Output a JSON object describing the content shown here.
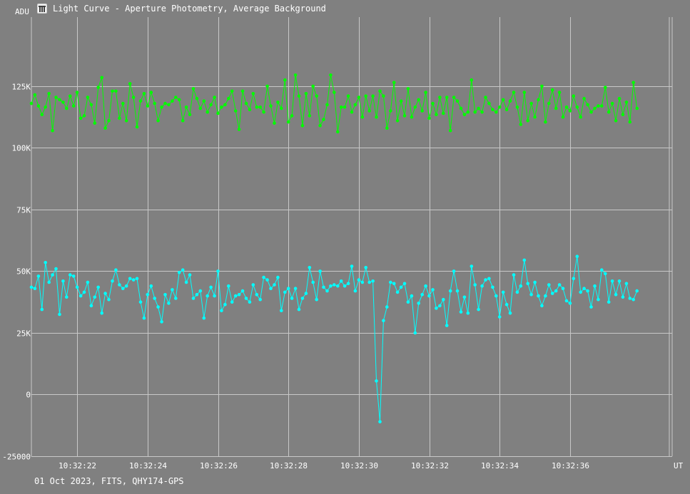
{
  "window": {
    "title": "Light Curve - Aperture Photometry, Average Background",
    "icon": "app-logo-icon"
  },
  "footer": {
    "info": "01 Oct 2023, FITS, QHY174-GPS"
  },
  "colors": {
    "background": "#808080",
    "grid": "#c8c8c8",
    "text": "#ffffff",
    "series_background": "#00ff00",
    "series_target": "#00ffff"
  },
  "chart_data": {
    "type": "line",
    "title": "Light Curve - Aperture Photometry, Average Background",
    "ylabel": "ADU",
    "xlabel": "UT",
    "ylim": [
      -25000,
      153000
    ],
    "xlim_seconds": [
      20.7,
      38.9
    ],
    "grid": true,
    "y_ticks": [
      {
        "value": 125000,
        "label": "125K"
      },
      {
        "value": 100000,
        "label": "100K"
      },
      {
        "value": 75000,
        "label": "75K"
      },
      {
        "value": 50000,
        "label": "50K"
      },
      {
        "value": 25000,
        "label": "25K"
      },
      {
        "value": 0,
        "label": "0"
      },
      {
        "value": -25000,
        "label": "-25000"
      }
    ],
    "x_ticks": [
      {
        "value": 22,
        "label": "10:32:22"
      },
      {
        "value": 24,
        "label": "10:32:24"
      },
      {
        "value": 26,
        "label": "10:32:26"
      },
      {
        "value": 28,
        "label": "10:32:28"
      },
      {
        "value": 30,
        "label": "10:32:30"
      },
      {
        "value": 32,
        "label": "10:32:32"
      },
      {
        "value": 34,
        "label": "10:32:34"
      },
      {
        "value": 36,
        "label": "10:32:36"
      }
    ],
    "x_step_seconds": 0.1,
    "series": [
      {
        "color": "#00ff00",
        "start_seconds": 20.7,
        "values": [
          118000,
          121500,
          117000,
          113500,
          116500,
          122000,
          107000,
          120500,
          119500,
          118500,
          116000,
          121000,
          117000,
          122500,
          112000,
          113000,
          120500,
          117500,
          110000,
          124500,
          128500,
          108000,
          111000,
          123000,
          123000,
          112000,
          118000,
          111000,
          126000,
          120500,
          108500,
          119000,
          122000,
          117000,
          122500,
          118000,
          111000,
          116500,
          118000,
          117500,
          119000,
          120500,
          119500,
          111000,
          116500,
          113500,
          124000,
          120000,
          116000,
          119000,
          114500,
          117500,
          120500,
          114000,
          116500,
          117500,
          120000,
          123000,
          115000,
          107500,
          123000,
          118000,
          115500,
          122000,
          116500,
          116500,
          114500,
          125000,
          117000,
          110000,
          118500,
          116000,
          127500,
          110500,
          113000,
          129500,
          121000,
          109000,
          122000,
          113000,
          125000,
          121000,
          109000,
          111500,
          117500,
          129500,
          122500,
          106500,
          116500,
          116500,
          121000,
          114500,
          117500,
          120500,
          112500,
          121000,
          115000,
          121000,
          112500,
          123000,
          121000,
          108000,
          115000,
          126500,
          111000,
          119000,
          113000,
          124000,
          112500,
          116500,
          119500,
          115000,
          122500,
          112000,
          118000,
          113500,
          120500,
          114000,
          120500,
          107000,
          120500,
          119000,
          116000,
          113500,
          114500,
          127500,
          114500,
          116000,
          114500,
          120500,
          118000,
          115500,
          114500,
          116500,
          119500,
          115500,
          119000,
          122500,
          116500,
          109500,
          122500,
          111000,
          118000,
          112500,
          119500,
          125000,
          110500,
          118000,
          123500,
          116000,
          122500,
          112500,
          116500,
          115000,
          121000,
          116500,
          112500,
          120000,
          117500,
          114500,
          116000,
          117000,
          117000,
          124500,
          114500,
          118000,
          111000,
          120000,
          113500,
          118500,
          110500,
          126500,
          116000
        ]
      },
      {
        "color": "#00ffff",
        "start_seconds": 20.7,
        "values": [
          43500,
          43000,
          48000,
          34500,
          53500,
          45500,
          48500,
          51000,
          32500,
          46000,
          39500,
          48500,
          48000,
          43500,
          40000,
          41500,
          45500,
          36000,
          39500,
          43500,
          33000,
          41000,
          38500,
          46000,
          50500,
          44500,
          43000,
          44000,
          47000,
          46500,
          47000,
          37500,
          31000,
          40500,
          44000,
          39000,
          35500,
          29500,
          40500,
          37000,
          42500,
          39000,
          49500,
          50500,
          45500,
          48500,
          39000,
          40500,
          42000,
          31000,
          40000,
          43500,
          40000,
          50000,
          34000,
          36500,
          44000,
          37500,
          40000,
          40500,
          42000,
          39000,
          37500,
          44500,
          40500,
          38500,
          47500,
          46500,
          43000,
          44500,
          47500,
          34000,
          41500,
          43000,
          39000,
          43000,
          34500,
          39000,
          41000,
          51500,
          45500,
          38500,
          50000,
          43500,
          42000,
          44000,
          44500,
          44000,
          46000,
          44000,
          45000,
          52000,
          42000,
          46500,
          45500,
          51500,
          45500,
          46000,
          5500,
          -11000,
          30000,
          35500,
          45500,
          45000,
          41500,
          43500,
          45000,
          37500,
          40000,
          25000,
          37000,
          40500,
          44000,
          40000,
          42500,
          35000,
          36000,
          38500,
          28000,
          42000,
          50000,
          42000,
          33500,
          39500,
          33000,
          52000,
          44500,
          34500,
          44000,
          46500,
          47000,
          43500,
          40000,
          31500,
          41500,
          36500,
          33000,
          48500,
          41500,
          44000,
          54500,
          45000,
          40500,
          45500,
          40000,
          36000,
          40000,
          44500,
          41000,
          42000,
          44500,
          43000,
          38000,
          37000,
          47000,
          56000,
          41500,
          43000,
          42000,
          35500,
          44000,
          38500,
          50500,
          49000,
          37500,
          46000,
          40500,
          46000,
          39500,
          45000,
          39000,
          38500,
          42000
        ]
      }
    ]
  }
}
